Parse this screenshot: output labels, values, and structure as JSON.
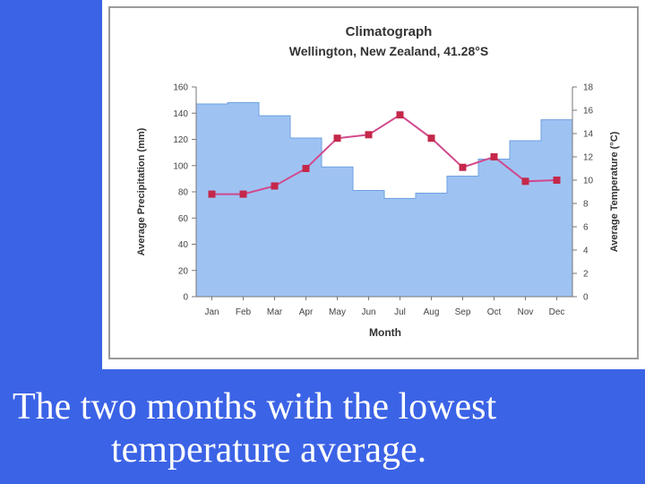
{
  "slide": {
    "caption_line1": "The  two months with the lowest",
    "caption_line2": "temperature average."
  },
  "colors": {
    "background": "#3b63e6",
    "precip_fill": "#9ec3f3",
    "precip_edge": "#6ea0e0",
    "temp_line": "#d14a8c",
    "temp_marker": "#c4284a",
    "frame": "#9a9a9a"
  },
  "chart_data": {
    "type": "bar",
    "title": "Climatograph",
    "subtitle": "Wellington, New Zealand, 41.28°S",
    "xlabel": "Month",
    "ylabel": "Average Precipitation (mm)",
    "y2label": "Average Temperature (°C)",
    "categories": [
      "Jan",
      "Feb",
      "Mar",
      "Apr",
      "May",
      "Jun",
      "Jul",
      "Aug",
      "Sep",
      "Oct",
      "Nov",
      "Dec"
    ],
    "ylim": [
      0,
      160
    ],
    "y2lim": [
      0,
      18
    ],
    "yticks": [
      0,
      20,
      40,
      60,
      80,
      100,
      120,
      140,
      160
    ],
    "y2ticks": [
      0,
      2,
      4,
      6,
      8,
      10,
      12,
      14,
      16,
      18
    ],
    "series": [
      {
        "name": "Average Precipitation",
        "kind": "bar",
        "axis": "left",
        "values": [
          147,
          148,
          138,
          121,
          99,
          81,
          75,
          79,
          92,
          105,
          119,
          135
        ]
      },
      {
        "name": "Average Temperature",
        "kind": "line",
        "axis": "right",
        "values": [
          8.8,
          8.8,
          9.5,
          11.0,
          13.6,
          13.9,
          15.6,
          13.6,
          11.1,
          12.0,
          9.9,
          10.0
        ]
      }
    ],
    "grid": false,
    "legend": "none"
  }
}
